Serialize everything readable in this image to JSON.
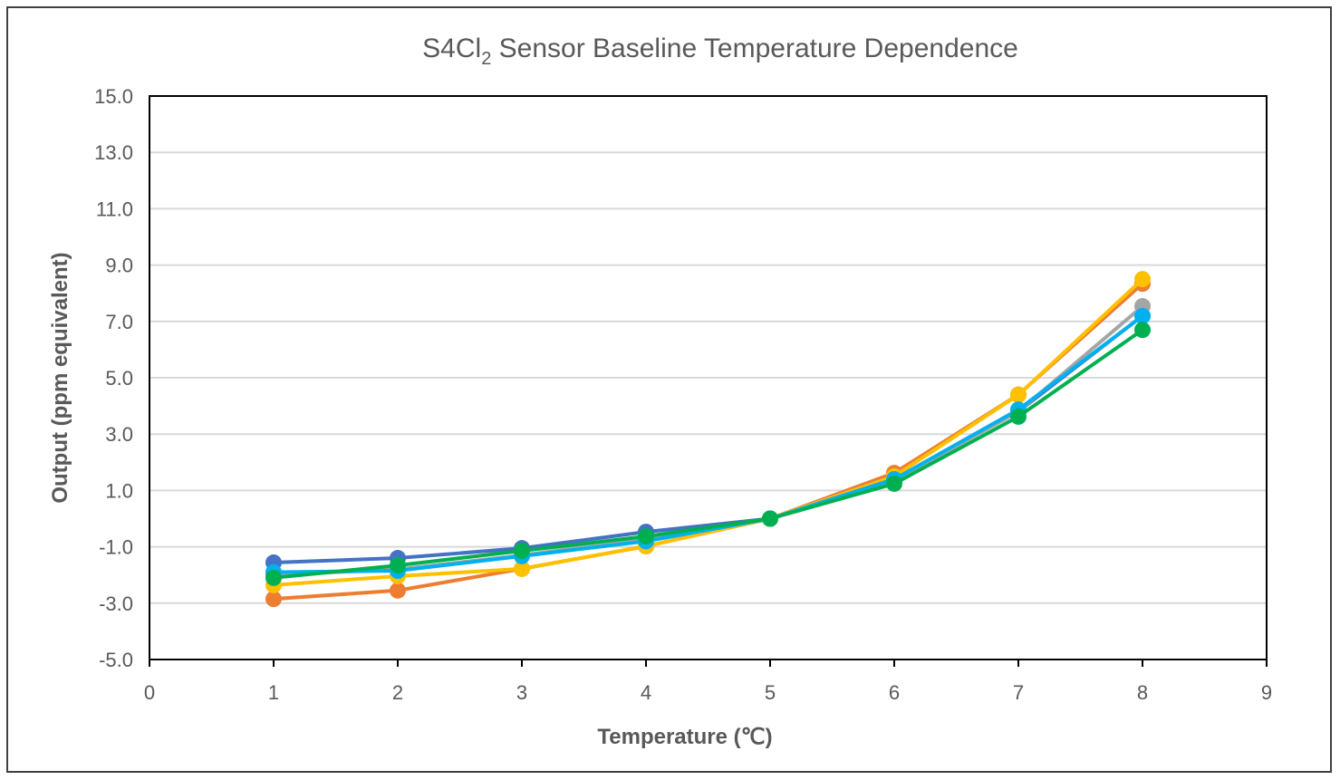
{
  "chart_data": {
    "type": "line",
    "title": {
      "main": "S4Cl",
      "subscript": "2",
      "rest": " Sensor Baseline Temperature Dependence"
    },
    "xlabel": "Temperature (℃)",
    "ylabel": "Output (ppm equivalent)",
    "xlim": [
      0,
      9
    ],
    "ylim": [
      -5,
      15
    ],
    "xticks": [
      "0",
      "1",
      "2",
      "3",
      "4",
      "5",
      "6",
      "7",
      "8",
      "9"
    ],
    "yticks": [
      "-5.0",
      "-3.0",
      "-1.0",
      "1.0",
      "3.0",
      "5.0",
      "7.0",
      "9.0",
      "11.0",
      "13.0",
      "15.0"
    ],
    "grid": "horizontal",
    "legend": "none",
    "x": [
      1,
      2,
      3,
      4,
      5,
      6,
      7,
      8
    ],
    "series": [
      {
        "color": "#4472C4",
        "values": [
          -1.56,
          -1.4,
          -1.05,
          -0.47,
          0.0,
          1.4,
          3.8,
          7.2
        ]
      },
      {
        "color": "#ED7D31",
        "values": [
          -2.85,
          -2.55,
          -1.78,
          -0.98,
          0.0,
          1.62,
          4.4,
          8.34
        ]
      },
      {
        "color": "#A5A5A5",
        "values": [
          -2.0,
          -1.8,
          -1.3,
          -0.7,
          0.0,
          1.35,
          3.8,
          7.54
        ]
      },
      {
        "color": "#FFC000",
        "values": [
          -2.36,
          -2.04,
          -1.78,
          -0.98,
          0.0,
          1.5,
          4.39,
          8.5
        ]
      },
      {
        "color": "#00B0F0",
        "values": [
          -1.9,
          -1.85,
          -1.33,
          -0.8,
          0.0,
          1.4,
          3.87,
          7.19
        ]
      },
      {
        "color": "#00B050",
        "values": [
          -2.1,
          -1.66,
          -1.14,
          -0.63,
          0.0,
          1.24,
          3.62,
          6.7
        ]
      }
    ]
  }
}
